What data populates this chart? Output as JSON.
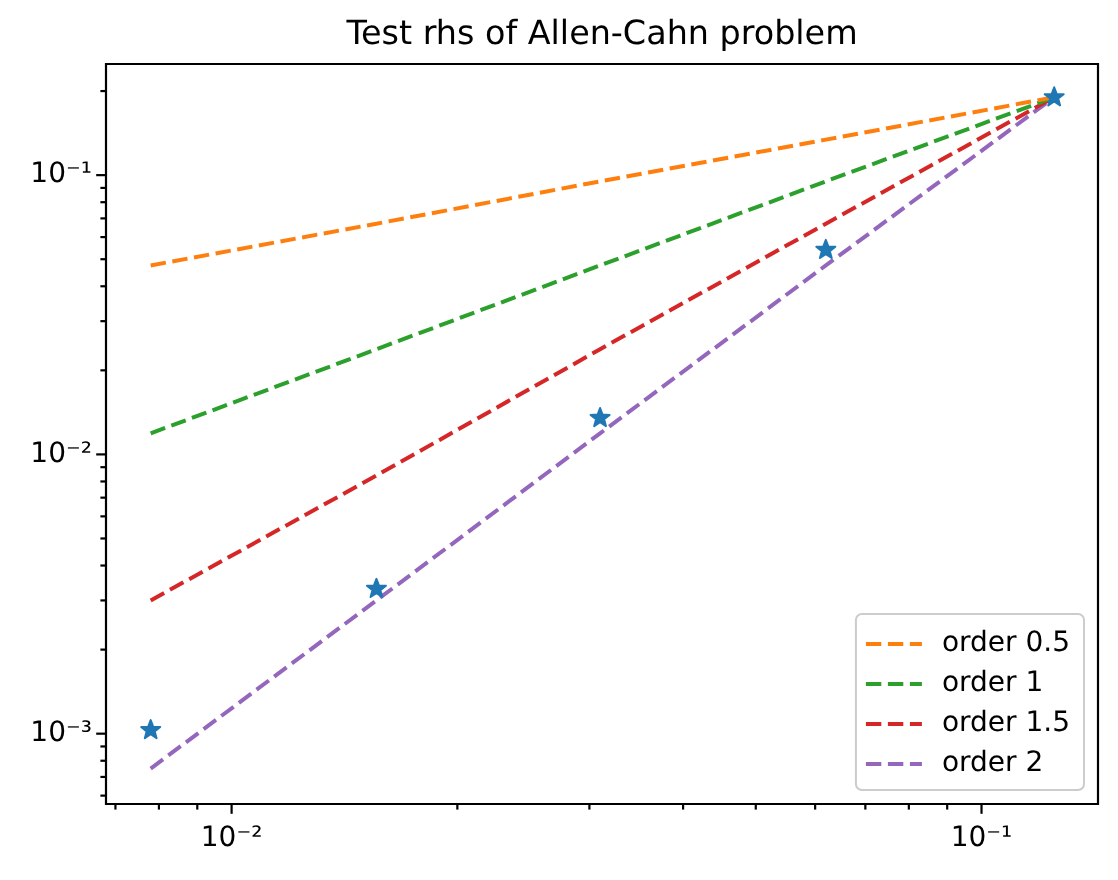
{
  "chart_data": {
    "type": "line",
    "title": "Test rhs of Allen-Cahn problem",
    "x": [
      0.0078,
      0.0156,
      0.031,
      0.062,
      0.125
    ],
    "series": [
      {
        "type": "scatter",
        "marker": "star",
        "color": "#1f77b4",
        "values": [
          0.00103,
          0.0033,
          0.0135,
          0.054,
          0.19
        ]
      },
      {
        "name": "order 0.5",
        "color": "#ff7f0e",
        "values": [
          0.0475,
          0.067,
          0.095,
          0.134,
          0.19
        ]
      },
      {
        "name": "order 1",
        "color": "#2ca02c",
        "values": [
          0.0119,
          0.0238,
          0.0475,
          0.095,
          0.19
        ]
      },
      {
        "name": "order 1.5",
        "color": "#d62728",
        "values": [
          0.003,
          0.0084,
          0.0238,
          0.067,
          0.19
        ]
      },
      {
        "name": "order 2",
        "color": "#9467bd",
        "values": [
          0.00075,
          0.003,
          0.0119,
          0.0475,
          0.19
        ]
      }
    ],
    "log": "xy",
    "xlim": [
      0.0068,
      0.143
    ],
    "ylim": [
      0.00056,
      0.25
    ],
    "xticks": [
      {
        "value": 0.007,
        "label": null
      },
      {
        "value": 0.008,
        "label": null
      },
      {
        "value": 0.009,
        "label": null
      },
      {
        "value": 0.01,
        "label": "10⁻²"
      },
      {
        "value": 0.02,
        "label": null
      },
      {
        "value": 0.03,
        "label": null
      },
      {
        "value": 0.04,
        "label": null
      },
      {
        "value": 0.05,
        "label": null
      },
      {
        "value": 0.06,
        "label": null
      },
      {
        "value": 0.07,
        "label": null
      },
      {
        "value": 0.08,
        "label": null
      },
      {
        "value": 0.09,
        "label": null
      },
      {
        "value": 0.1,
        "label": "10⁻¹"
      }
    ],
    "yticks": [
      {
        "value": 0.0006,
        "label": null
      },
      {
        "value": 0.0007,
        "label": null
      },
      {
        "value": 0.0008,
        "label": null
      },
      {
        "value": 0.0009,
        "label": null
      },
      {
        "value": 0.001,
        "label": "10⁻³"
      },
      {
        "value": 0.002,
        "label": null
      },
      {
        "value": 0.003,
        "label": null
      },
      {
        "value": 0.004,
        "label": null
      },
      {
        "value": 0.005,
        "label": null
      },
      {
        "value": 0.006,
        "label": null
      },
      {
        "value": 0.007,
        "label": null
      },
      {
        "value": 0.008,
        "label": null
      },
      {
        "value": 0.009,
        "label": null
      },
      {
        "value": 0.01,
        "label": "10⁻²"
      },
      {
        "value": 0.02,
        "label": null
      },
      {
        "value": 0.03,
        "label": null
      },
      {
        "value": 0.04,
        "label": null
      },
      {
        "value": 0.05,
        "label": null
      },
      {
        "value": 0.06,
        "label": null
      },
      {
        "value": 0.07,
        "label": null
      },
      {
        "value": 0.08,
        "label": null
      },
      {
        "value": 0.09,
        "label": null
      },
      {
        "value": 0.1,
        "label": "10⁻¹"
      },
      {
        "value": 0.2,
        "label": null
      }
    ],
    "grid": false,
    "legend": "bottom right",
    "marker": "none",
    "line_style": "dashed"
  }
}
